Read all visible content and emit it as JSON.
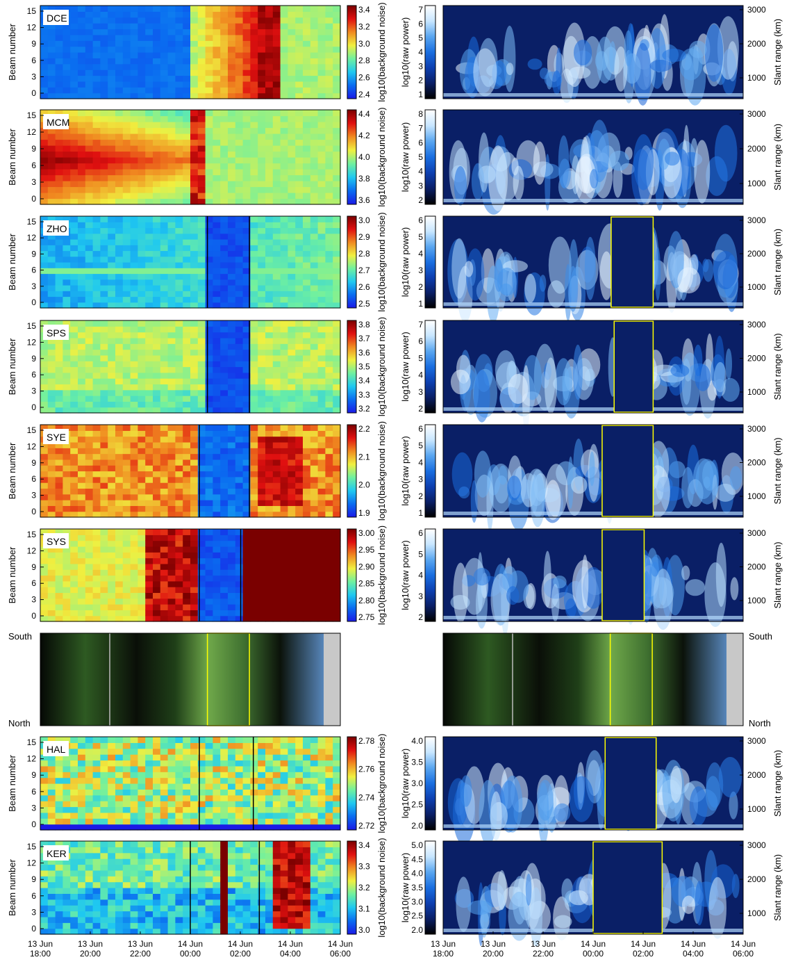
{
  "chart_data": {
    "type": "heatmap",
    "x_ticks": [
      "13 Jun\n18:00",
      "13 Jun\n20:00",
      "13 Jun\n22:00",
      "14 Jun\n00:00",
      "14 Jun\n02:00",
      "14 Jun\n04:00",
      "14 Jun\n06:00"
    ],
    "beam_ticks": [
      "0",
      "3",
      "6",
      "9",
      "12",
      "15"
    ],
    "beam_label": "Beam number",
    "noise_label": "log10(background noise)",
    "power_label": "log10(raw power)",
    "range_label": "Slant range (km)",
    "range_ticks": [
      "1000",
      "2000",
      "3000"
    ],
    "asc_labels": {
      "top": "South",
      "bottom": "North"
    },
    "panels": [
      {
        "name": "DCE",
        "noise_ticks": [
          "2.4",
          "2.6",
          "2.8",
          "3.0",
          "3.2",
          "3.4"
        ],
        "power_ticks": [
          "1",
          "2",
          "3",
          "4",
          "5",
          "6",
          "7"
        ]
      },
      {
        "name": "MCM",
        "noise_ticks": [
          "3.6",
          "3.8",
          "4.0",
          "4.2",
          "4.4"
        ],
        "power_ticks": [
          "2",
          "3",
          "4",
          "5",
          "6",
          "7",
          "8"
        ]
      },
      {
        "name": "ZHO",
        "noise_ticks": [
          "2.5",
          "2.6",
          "2.7",
          "2.8",
          "2.9",
          "3.0"
        ],
        "power_ticks": [
          "1",
          "2",
          "3",
          "4",
          "5",
          "6"
        ]
      },
      {
        "name": "SPS",
        "noise_ticks": [
          "3.2",
          "3.3",
          "3.4",
          "3.5",
          "3.6",
          "3.7",
          "3.8"
        ],
        "power_ticks": [
          "2",
          "3",
          "4",
          "5",
          "6",
          "7"
        ]
      },
      {
        "name": "SYE",
        "noise_ticks": [
          "1.9",
          "2.0",
          "2.1",
          "2.2"
        ],
        "power_ticks": [
          "1",
          "2",
          "3",
          "4",
          "5",
          "6"
        ]
      },
      {
        "name": "SYS",
        "noise_ticks": [
          "2.75",
          "2.80",
          "2.85",
          "2.90",
          "2.95",
          "3.00"
        ],
        "power_ticks": [
          "2",
          "3",
          "4",
          "5",
          "6"
        ]
      },
      {
        "name": "ASC"
      },
      {
        "name": "HAL",
        "noise_ticks": [
          "2.72",
          "2.74",
          "2.76",
          "2.78"
        ],
        "power_ticks": [
          "2.0",
          "2.5",
          "3.0",
          "3.5",
          "4.0"
        ]
      },
      {
        "name": "KER",
        "noise_ticks": [
          "3.0",
          "3.1",
          "3.2",
          "3.3",
          "3.4"
        ],
        "power_ticks": [
          "2.0",
          "2.5",
          "3.0",
          "3.5",
          "4.0",
          "4.5",
          "5.0"
        ]
      }
    ],
    "noise_colormap": [
      "#1a1ae6",
      "#0a6cf0",
      "#1fc8f0",
      "#6ff0a0",
      "#f0f040",
      "#f08a20",
      "#e01010",
      "#7a0000"
    ],
    "power_colormap": [
      "#000000",
      "#0a1f66",
      "#0d3fb0",
      "#1a6ee0",
      "#5aa6f0",
      "#c8e6ff",
      "#ffffff"
    ],
    "accent": "#ffff00"
  }
}
